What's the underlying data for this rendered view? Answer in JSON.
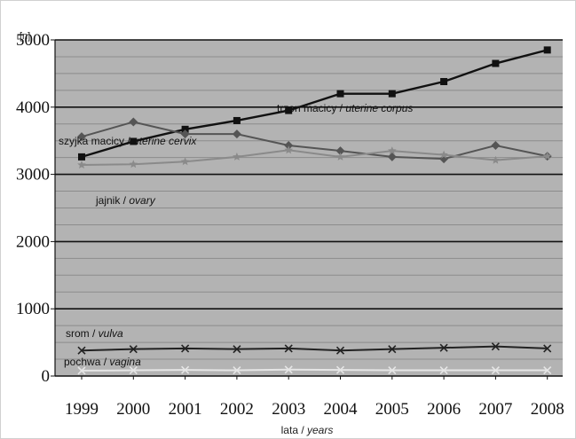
{
  "chart_data": {
    "type": "line",
    "title": "",
    "ylabel_unit": "[n]",
    "xlabel": {
      "pl": "lata / ",
      "en": "years"
    },
    "x": [
      "1999",
      "2000",
      "2001",
      "2002",
      "2003",
      "2004",
      "2005",
      "2006",
      "2007",
      "2008"
    ],
    "ylim": [
      0,
      5000
    ],
    "yticks": [
      "0",
      "1000",
      "2000",
      "3000",
      "4000",
      "5000"
    ],
    "grid": true,
    "legend": "labels placed directly on the lines",
    "series": [
      {
        "key": "corpus",
        "name_pl": "trzon macicy / ",
        "name_en": "uterine corpus",
        "color": "#111111",
        "marker": "square",
        "values": [
          3260,
          3490,
          3670,
          3800,
          3950,
          4200,
          4200,
          4380,
          4650,
          4850
        ]
      },
      {
        "key": "cervix",
        "name_pl": "szyjka macicy / ",
        "name_en": "uterine cervix",
        "color": "#555555",
        "marker": "diamond",
        "values": [
          3560,
          3780,
          3600,
          3600,
          3430,
          3350,
          3260,
          3230,
          3430,
          3270
        ]
      },
      {
        "key": "ovary",
        "name_pl": "jajnik / ",
        "name_en": "ovary",
        "color": "#8a8a8a",
        "marker": "star",
        "values": [
          3140,
          3150,
          3190,
          3260,
          3360,
          3260,
          3350,
          3290,
          3210,
          3270
        ]
      },
      {
        "key": "vulva",
        "name_pl": "srom / ",
        "name_en": "vulva",
        "color": "#222222",
        "marker": "x",
        "values": [
          380,
          400,
          410,
          400,
          410,
          380,
          400,
          420,
          440,
          410
        ]
      },
      {
        "key": "vagina",
        "name_pl": "pochwa / ",
        "name_en": "vagina",
        "color": "#e6e6e6",
        "marker": "x",
        "values": [
          80,
          85,
          90,
          85,
          95,
          90,
          85,
          85,
          85,
          85
        ]
      }
    ]
  },
  "colors": {
    "plot_background": "#b3b3b3",
    "major_grid": "#111111",
    "minor_grid": "#8c8c8c"
  }
}
